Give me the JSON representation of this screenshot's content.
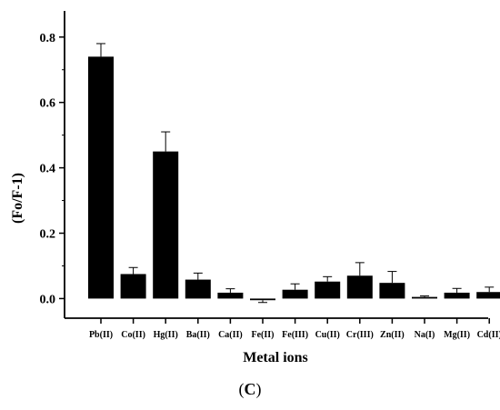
{
  "panel_label": {
    "open": "(",
    "letter": "C",
    "close": ")"
  },
  "chart_data": {
    "type": "bar",
    "xlabel": "Metal ions",
    "ylabel": "(Fo/F-1)",
    "ylim": [
      -0.06,
      0.88
    ],
    "yticks": [
      "0.0",
      "0.2",
      "0.4",
      "0.6",
      "0.8"
    ],
    "categories": [
      "Pb(II)",
      "Co(II)",
      "Hg(II)",
      "Ba(II)",
      "Ca(II)",
      "Fe(II)",
      "Fe(III)",
      "Cu(II)",
      "Cr(III)",
      "Zn(II)",
      "Na(I)",
      "Mg(II)",
      "Cd(II)"
    ],
    "values": [
      0.74,
      0.075,
      0.45,
      0.058,
      0.018,
      -0.005,
      0.027,
      0.052,
      0.07,
      0.048,
      0.005,
      0.018,
      0.02
    ],
    "errors": [
      0.04,
      0.02,
      0.06,
      0.02,
      0.012,
      0.007,
      0.018,
      0.015,
      0.04,
      0.035,
      0.003,
      0.013,
      0.015
    ],
    "bar_color": "#000000"
  }
}
